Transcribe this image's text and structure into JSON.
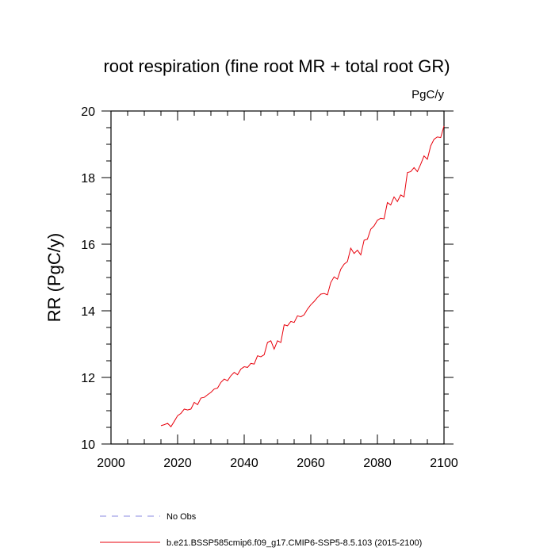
{
  "chart_data": {
    "type": "line",
    "title": "root respiration (fine root MR + total root GR)",
    "units": "PgC/y",
    "xlabel": "",
    "ylabel": "RR  (PgC/y)",
    "xlim": [
      2000,
      2100
    ],
    "ylim": [
      10,
      20
    ],
    "xticks": [
      2000,
      2020,
      2040,
      2060,
      2080,
      2100
    ],
    "yticks": [
      10,
      12,
      14,
      16,
      18,
      20
    ],
    "grid": false,
    "legend_position": "bottom-left",
    "legend": [
      {
        "label": "No Obs",
        "color": "#8a8ae0",
        "dash": true
      },
      {
        "label": "b.e21.BSSP585cmip6.f09_g17.CMIP6-SSP5-8.5.103 (2015-2100)",
        "color": "#e8000b",
        "dash": false
      }
    ],
    "series": [
      {
        "name": "b.e21.BSSP585cmip6.f09_g17.CMIP6-SSP5-8.5.103 (2015-2100)",
        "color": "#e8000b",
        "x": [
          2015,
          2016,
          2017,
          2018,
          2019,
          2020,
          2021,
          2022,
          2023,
          2024,
          2025,
          2026,
          2027,
          2028,
          2029,
          2030,
          2031,
          2032,
          2033,
          2034,
          2035,
          2036,
          2037,
          2038,
          2039,
          2040,
          2041,
          2042,
          2043,
          2044,
          2045,
          2046,
          2047,
          2048,
          2049,
          2050,
          2051,
          2052,
          2053,
          2054,
          2055,
          2056,
          2057,
          2058,
          2059,
          2060,
          2061,
          2062,
          2063,
          2064,
          2065,
          2066,
          2067,
          2068,
          2069,
          2070,
          2071,
          2072,
          2073,
          2074,
          2075,
          2076,
          2077,
          2078,
          2079,
          2080,
          2081,
          2082,
          2083,
          2084,
          2085,
          2086,
          2087,
          2088,
          2089,
          2090,
          2091,
          2092,
          2093,
          2094,
          2095,
          2096,
          2097,
          2098,
          2099,
          2100
        ],
        "y": [
          10.55,
          10.58,
          10.62,
          10.52,
          10.68,
          10.85,
          10.92,
          11.05,
          11.02,
          11.05,
          11.25,
          11.18,
          11.38,
          11.4,
          11.48,
          11.55,
          11.65,
          11.68,
          11.85,
          11.95,
          11.9,
          12.05,
          12.15,
          12.08,
          12.25,
          12.32,
          12.3,
          12.42,
          12.4,
          12.65,
          12.62,
          12.68,
          13.05,
          13.1,
          12.85,
          13.1,
          13.05,
          13.58,
          13.55,
          13.68,
          13.65,
          13.85,
          13.82,
          13.88,
          14.05,
          14.18,
          14.28,
          14.4,
          14.5,
          14.52,
          14.48,
          14.85,
          15.02,
          14.95,
          15.25,
          15.4,
          15.48,
          15.88,
          15.72,
          15.82,
          15.68,
          16.12,
          16.15,
          16.45,
          16.55,
          16.72,
          16.78,
          16.76,
          17.25,
          17.18,
          17.42,
          17.28,
          17.48,
          17.42,
          18.15,
          18.18,
          18.3,
          18.18,
          18.4,
          18.65,
          18.55,
          18.95,
          19.15,
          19.22,
          19.2,
          19.55
        ]
      }
    ]
  }
}
